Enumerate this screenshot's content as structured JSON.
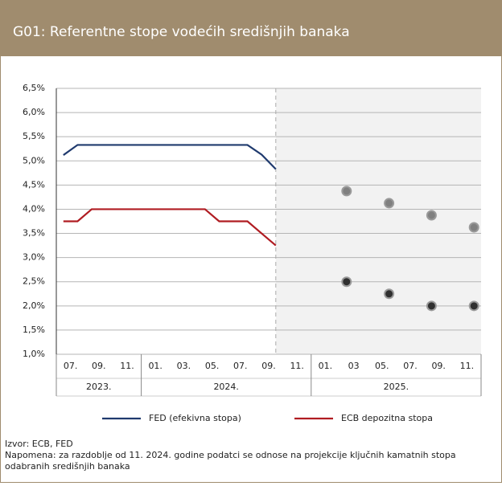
{
  "chart_data": {
    "type": "line",
    "title": "G01: Referentne stope vodećih središnjih banaka",
    "categories": [
      "07.",
      null,
      "09.",
      null,
      "11.",
      null,
      "01.",
      null,
      "03.",
      null,
      "05.",
      null,
      "07.",
      null,
      "09.",
      null,
      "11.",
      null,
      "01.",
      null,
      "03",
      null,
      "05.",
      null,
      "07.",
      null,
      "09.",
      null,
      "11.",
      null
    ],
    "years": [
      "2023.",
      "2024.",
      "2025."
    ],
    "ylim": [
      1.0,
      6.5
    ],
    "yticks": [
      {
        "value": 1.0,
        "label": "1,0%"
      },
      {
        "value": 1.5,
        "label": "1,5%"
      },
      {
        "value": 2.0,
        "label": "2,0%"
      },
      {
        "value": 2.5,
        "label": "2,5%"
      },
      {
        "value": 3.0,
        "label": "3,0%"
      },
      {
        "value": 3.5,
        "label": "3,5%"
      },
      {
        "value": 4.0,
        "label": "4,0%"
      },
      {
        "value": 4.5,
        "label": "4,5%"
      },
      {
        "value": 5.0,
        "label": "5,0%"
      },
      {
        "value": 5.5,
        "label": "5,5%"
      },
      {
        "value": 6.0,
        "label": "6,0%"
      },
      {
        "value": 6.5,
        "label": "6,5%"
      }
    ],
    "grid": true,
    "series": [
      {
        "name": "FED (efekivna stopa)",
        "color": "#1f3a6e",
        "type": "line",
        "values": [
          5.12,
          5.33,
          5.33,
          5.33,
          5.33,
          5.33,
          5.33,
          5.33,
          5.33,
          5.33,
          5.33,
          5.33,
          5.33,
          5.33,
          5.13,
          4.83,
          null,
          null,
          null,
          null,
          null,
          null,
          null,
          null,
          null,
          null,
          null,
          null,
          null,
          null
        ]
      },
      {
        "name": "ECB depozitna stopa",
        "color": "#b01c22",
        "type": "line",
        "values": [
          3.75,
          3.75,
          4.0,
          4.0,
          4.0,
          4.0,
          4.0,
          4.0,
          4.0,
          4.0,
          4.0,
          3.75,
          3.75,
          3.75,
          3.5,
          3.25,
          null,
          null,
          null,
          null,
          null,
          null,
          null,
          null,
          null,
          null,
          null,
          null,
          null,
          null
        ]
      },
      {
        "color": "#808080",
        "type": "scatter",
        "values": [
          null,
          null,
          null,
          null,
          null,
          null,
          null,
          null,
          null,
          null,
          null,
          null,
          null,
          null,
          null,
          null,
          null,
          null,
          null,
          null,
          4.375,
          null,
          null,
          4.125,
          null,
          null,
          3.875,
          null,
          null,
          3.625
        ]
      },
      {
        "color": "#303030",
        "type": "scatter",
        "values": [
          null,
          null,
          null,
          null,
          null,
          null,
          null,
          null,
          null,
          null,
          null,
          null,
          null,
          null,
          null,
          null,
          null,
          null,
          null,
          null,
          2.5,
          null,
          null,
          2.25,
          null,
          null,
          2.0,
          null,
          null,
          2.0
        ]
      }
    ],
    "source": "Izvor: ECB, FED",
    "note_line1": "Napomena: za razdoblje od 11. 2024. godine podatci se odnose na projekcije ključnih kamatnih stopa",
    "note_line2": "odabranih središnjih banaka"
  }
}
